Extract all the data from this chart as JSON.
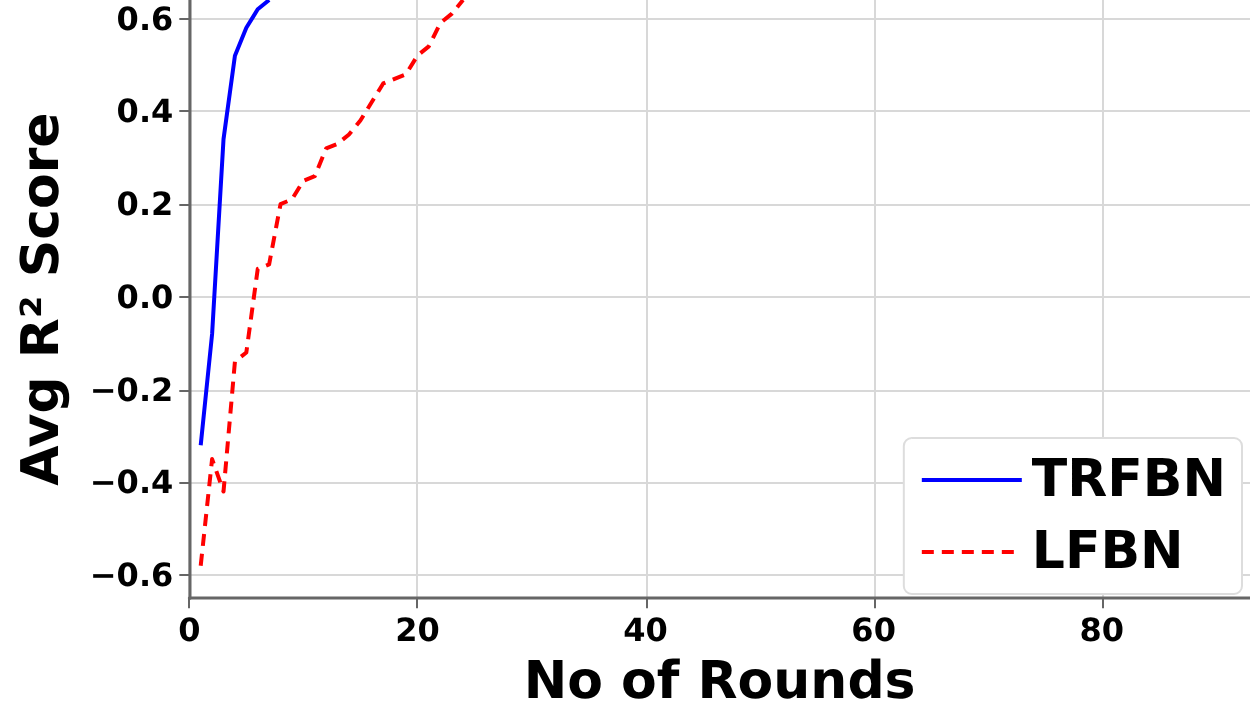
{
  "chart_data": {
    "type": "line",
    "xlabel": "No of Rounds",
    "ylabel": "Avg R² Score",
    "xlim": [
      0,
      93
    ],
    "xticks": [
      0,
      20,
      40,
      60,
      80
    ],
    "ylim": [
      -0.65,
      0.64
    ],
    "yticks": [
      {
        "value": -0.6,
        "label": "−0.6"
      },
      {
        "value": -0.4,
        "label": "−0.4"
      },
      {
        "value": -0.2,
        "label": "−0.2"
      },
      {
        "value": 0,
        "label": "0.0"
      },
      {
        "value": 0.2,
        "label": "0.2"
      },
      {
        "value": 0.4,
        "label": "0.4"
      },
      {
        "value": 0.6,
        "label": "0.6"
      }
    ],
    "grid": true,
    "legend": "bottom right",
    "marker": "none",
    "series": [
      {
        "name": "TRFBN",
        "color": "#0000ff",
        "line_style": "solid",
        "x": [
          1,
          2,
          3,
          4,
          5,
          6,
          7
        ],
        "values": [
          -0.32,
          -0.08,
          0.34,
          0.52,
          0.58,
          0.62,
          0.64
        ]
      },
      {
        "name": "LFBN",
        "color": "#ff0000",
        "line_style": "dashed",
        "x": [
          1,
          2,
          3,
          4,
          5,
          6,
          7,
          8,
          9,
          10,
          11,
          12,
          13,
          14,
          15,
          16,
          17,
          18,
          19,
          20,
          21,
          22,
          23,
          24
        ],
        "values": [
          -0.58,
          -0.35,
          -0.42,
          -0.14,
          -0.12,
          0.06,
          0.07,
          0.2,
          0.21,
          0.25,
          0.26,
          0.32,
          0.33,
          0.35,
          0.38,
          0.42,
          0.46,
          0.47,
          0.48,
          0.52,
          0.54,
          0.59,
          0.61,
          0.64
        ]
      }
    ]
  }
}
